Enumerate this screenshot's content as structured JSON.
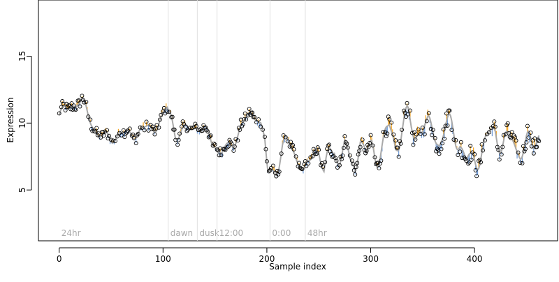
{
  "chart_data": {
    "type": "scatter",
    "xlabel": "Sample index",
    "ylabel": "Expression",
    "xlim": [
      -20,
      480
    ],
    "ylim": [
      1.2,
      19.2
    ],
    "x_ticks": [
      0,
      100,
      200,
      300,
      400
    ],
    "y_ticks": [
      5,
      10,
      15
    ],
    "grid": false,
    "legend": "none",
    "colors": {
      "points_stroke": "#000000",
      "trend_line": "#a9a9a9",
      "residual_up": "#f5a623",
      "residual_down": "#6f9bd8",
      "phase_line": "#e0e0e0",
      "phase_label": "#a9a9a9"
    },
    "phase_markers": [
      {
        "x": 0,
        "label": "24hr"
      },
      {
        "x": 105,
        "label": "dawn"
      },
      {
        "x": 133,
        "label": "dusk"
      },
      {
        "x": 152,
        "label": "12:00"
      },
      {
        "x": 203,
        "label": "0:00"
      },
      {
        "x": 237,
        "label": "48hr"
      }
    ],
    "anchors": [
      [
        0,
        10.6
      ],
      [
        8,
        11.0
      ],
      [
        12,
        11.4
      ],
      [
        18,
        11.7
      ],
      [
        22,
        11.5
      ],
      [
        28,
        10.5
      ],
      [
        32,
        10.0
      ],
      [
        38,
        9.2
      ],
      [
        42,
        8.8
      ],
      [
        50,
        8.9
      ],
      [
        58,
        9.3
      ],
      [
        64,
        9.0
      ],
      [
        70,
        9.3
      ],
      [
        80,
        9.4
      ],
      [
        90,
        9.7
      ],
      [
        96,
        10.1
      ],
      [
        100,
        10.4
      ],
      [
        104,
        11.0
      ],
      [
        108,
        10.6
      ],
      [
        112,
        9.2
      ],
      [
        122,
        9.4
      ],
      [
        132,
        9.9
      ],
      [
        140,
        9.3
      ],
      [
        150,
        8.5
      ],
      [
        156,
        7.8
      ],
      [
        162,
        8.0
      ],
      [
        168,
        8.6
      ],
      [
        175,
        9.8
      ],
      [
        180,
        10.2
      ],
      [
        185,
        10.6
      ],
      [
        190,
        10.8
      ],
      [
        194,
        10.0
      ],
      [
        198,
        8.5
      ],
      [
        201,
        6.0
      ],
      [
        205,
        6.4
      ],
      [
        210,
        7.0
      ],
      [
        215,
        8.0
      ],
      [
        220,
        8.4
      ],
      [
        226,
        8.0
      ],
      [
        231,
        7.5
      ],
      [
        236,
        6.0
      ],
      [
        240,
        6.5
      ],
      [
        246,
        8.5
      ],
      [
        250,
        8.2
      ],
      [
        255,
        6.2
      ],
      [
        260,
        7.4
      ],
      [
        265,
        8.4
      ],
      [
        270,
        7.0
      ],
      [
        275,
        8.6
      ],
      [
        280,
        6.6
      ],
      [
        285,
        7.2
      ],
      [
        290,
        8.8
      ],
      [
        296,
        7.4
      ],
      [
        300,
        8.2
      ],
      [
        305,
        7.8
      ],
      [
        312,
        8.4
      ],
      [
        318,
        9.4
      ],
      [
        324,
        8.4
      ],
      [
        330,
        9.8
      ],
      [
        336,
        10.2
      ],
      [
        342,
        9.0
      ],
      [
        348,
        10.2
      ],
      [
        354,
        9.2
      ],
      [
        360,
        9.6
      ],
      [
        366,
        8.8
      ],
      [
        372,
        9.6
      ],
      [
        380,
        9.4
      ],
      [
        386,
        8.8
      ],
      [
        392,
        7.0
      ],
      [
        396,
        6.8
      ],
      [
        402,
        7.6
      ],
      [
        408,
        8.2
      ],
      [
        414,
        8.8
      ],
      [
        420,
        9.4
      ],
      [
        426,
        8.8
      ],
      [
        432,
        8.4
      ],
      [
        436,
        8.6
      ],
      [
        440,
        8.2
      ],
      [
        446,
        8.4
      ],
      [
        452,
        8.2
      ],
      [
        456,
        8.0
      ],
      [
        462,
        9.6
      ]
    ]
  }
}
